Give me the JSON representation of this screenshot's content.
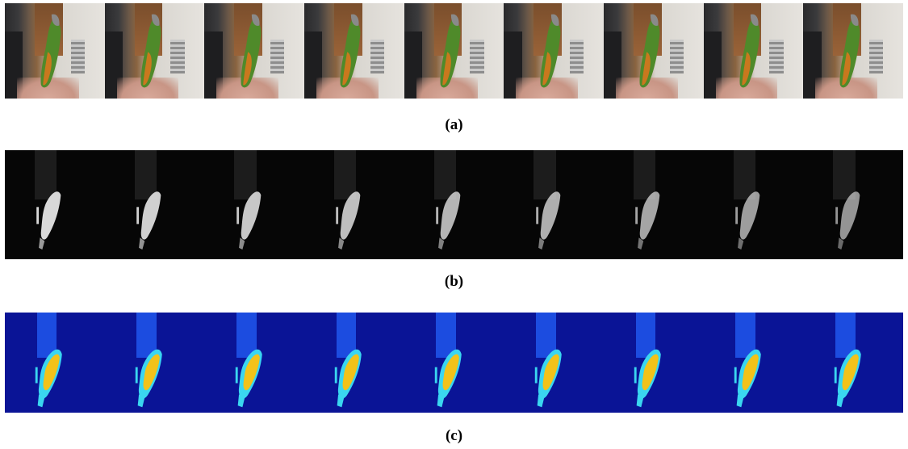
{
  "figure": {
    "frames_per_row": 9,
    "rows": [
      {
        "id": "a",
        "caption": "(a)",
        "style": "rgb"
      },
      {
        "id": "b",
        "caption": "(b)",
        "style": "grayscale"
      },
      {
        "id": "c",
        "caption": "(c)",
        "style": "heatmap"
      }
    ],
    "colors": {
      "parrot_green": "#4f8a2a",
      "parrot_orange": "#c9781e",
      "parrot_head": "#8a8a8a",
      "gray_bright": "#d8d8d8",
      "heat_background": "#0a1496",
      "heat_yellow": "#f2c21a",
      "heat_cyan": "#3ad6f0"
    }
  }
}
